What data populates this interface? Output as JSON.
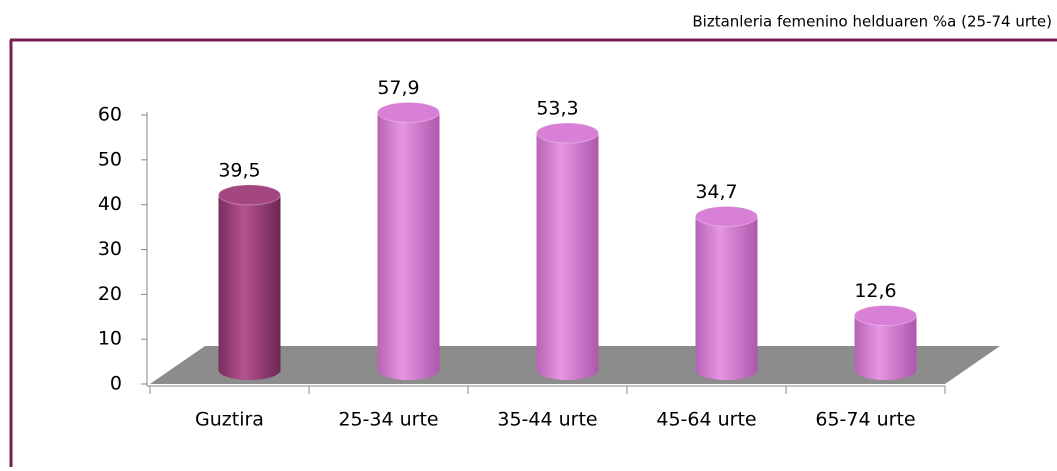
{
  "chart_data": {
    "type": "bar3d",
    "subtitle": "Biztanleria femenino helduaren %a (25-74 urte)",
    "categories": [
      "Guztira",
      "25-34 urte",
      "35-44 urte",
      "45-64 urte",
      "65-74 urte"
    ],
    "values": [
      39.5,
      57.9,
      53.3,
      34.7,
      12.6
    ],
    "value_labels": [
      "39,5",
      "57,9",
      "53,3",
      "34,7",
      "12,6"
    ],
    "colors": [
      "#a4467f",
      "#d87fd6",
      "#d87fd6",
      "#d87fd6",
      "#d87fd6"
    ],
    "ylim": [
      0,
      60
    ],
    "yticks": [
      0,
      10,
      20,
      30,
      40,
      50,
      60
    ]
  }
}
